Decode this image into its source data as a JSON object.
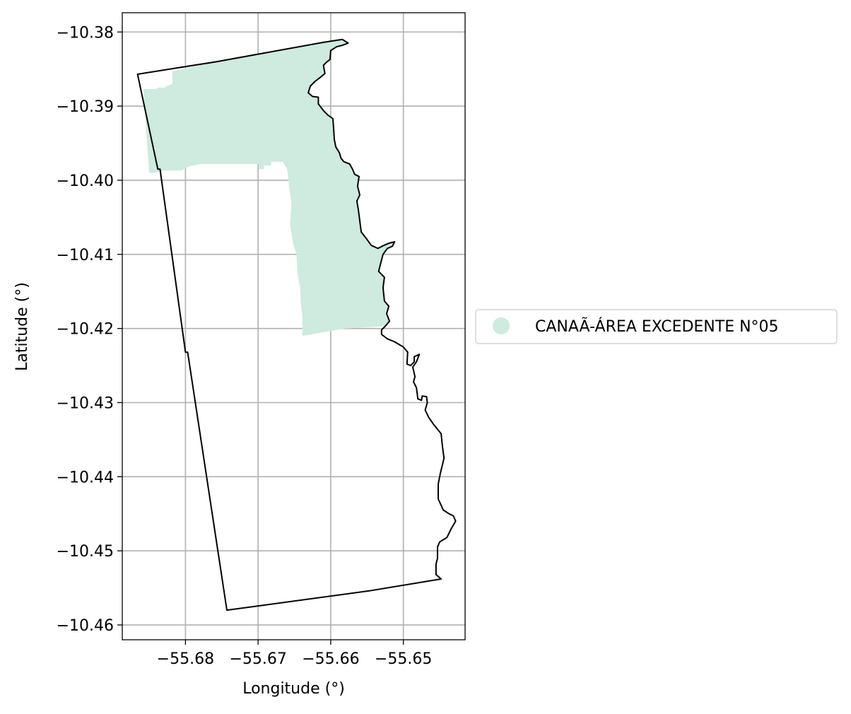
{
  "chart_data": {
    "type": "map",
    "xlabel": "Longitude (°)",
    "ylabel": "Latitude (°)",
    "xlim": [
      -55.6887,
      -55.6415
    ],
    "ylim": [
      -10.462,
      -10.3774
    ],
    "x_ticks": [
      -55.68,
      -55.67,
      -55.66,
      -55.65
    ],
    "x_tick_labels": [
      "−55.68",
      "−55.67",
      "−55.66",
      "−55.65"
    ],
    "y_ticks": [
      -10.38,
      -10.39,
      -10.4,
      -10.41,
      -10.42,
      -10.43,
      -10.44,
      -10.45,
      -10.46
    ],
    "y_tick_labels": [
      "−10.38",
      "−10.39",
      "−10.40",
      "−10.41",
      "−10.42",
      "−10.43",
      "−10.44",
      "−10.45",
      "−10.46"
    ],
    "grid": true,
    "legend": {
      "placement": "right",
      "entries": [
        {
          "label": "CANAÃ-ÁREA EXCEDENTE N°05",
          "color": "#cfeadf",
          "marker": "circle"
        }
      ]
    },
    "colors": {
      "fill": "#cfeadf",
      "boundary": "#000000",
      "grid": "#b0b0b0"
    },
    "filled_region": [
      [
        -55.6858,
        -10.3877
      ],
      [
        -55.6841,
        -10.3877
      ],
      [
        -55.6837,
        -10.3875
      ],
      [
        -55.6829,
        -10.3875
      ],
      [
        -55.6826,
        -10.3873
      ],
      [
        -55.6818,
        -10.387
      ],
      [
        -55.6818,
        -10.3853
      ],
      [
        -55.6757,
        -10.384
      ],
      [
        -55.661,
        -10.3814
      ],
      [
        -55.6584,
        -10.381
      ],
      [
        -55.6576,
        -10.3815
      ],
      [
        -55.6584,
        -10.3818
      ],
      [
        -55.6592,
        -10.382
      ],
      [
        -55.66,
        -10.3825
      ],
      [
        -55.6601,
        -10.3837
      ],
      [
        -55.6606,
        -10.3841
      ],
      [
        -55.661,
        -10.3845
      ],
      [
        -55.6608,
        -10.3856
      ],
      [
        -55.6614,
        -10.3861
      ],
      [
        -55.6622,
        -10.3867
      ],
      [
        -55.6628,
        -10.3873
      ],
      [
        -55.6631,
        -10.3882
      ],
      [
        -55.6625,
        -10.3887
      ],
      [
        -55.6617,
        -10.3888
      ],
      [
        -55.6617,
        -10.3897
      ],
      [
        -55.661,
        -10.3906
      ],
      [
        -55.6604,
        -10.3912
      ],
      [
        -55.6597,
        -10.3917
      ],
      [
        -55.6596,
        -10.393
      ],
      [
        -55.6595,
        -10.3945
      ],
      [
        -55.6593,
        -10.3955
      ],
      [
        -55.6588,
        -10.3963
      ],
      [
        -55.6586,
        -10.397
      ],
      [
        -55.6582,
        -10.3975
      ],
      [
        -55.6574,
        -10.3978
      ],
      [
        -55.657,
        -10.3985
      ],
      [
        -55.6567,
        -10.3992
      ],
      [
        -55.6561,
        -10.3995
      ],
      [
        -55.6563,
        -10.4008
      ],
      [
        -55.656,
        -10.402
      ],
      [
        -55.6564,
        -10.4028
      ],
      [
        -55.6562,
        -10.404
      ],
      [
        -55.6558,
        -10.407
      ],
      [
        -55.655,
        -10.408
      ],
      [
        -55.6544,
        -10.4088
      ],
      [
        -55.6535,
        -10.4092
      ],
      [
        -55.6527,
        -10.4088
      ],
      [
        -55.652,
        -10.4085
      ],
      [
        -55.6512,
        -10.4083
      ],
      [
        -55.6515,
        -10.4089
      ],
      [
        -55.6522,
        -10.4092
      ],
      [
        -55.6528,
        -10.41
      ],
      [
        -55.6532,
        -10.4115
      ],
      [
        -55.6534,
        -10.4123
      ],
      [
        -55.6526,
        -10.4131
      ],
      [
        -55.6528,
        -10.4145
      ],
      [
        -55.6526,
        -10.4163
      ],
      [
        -55.652,
        -10.417
      ],
      [
        -55.6523,
        -10.418
      ],
      [
        -55.6519,
        -10.419
      ],
      [
        -55.6525,
        -10.4197
      ],
      [
        -55.658,
        -10.42
      ],
      [
        -55.6639,
        -10.421
      ],
      [
        -55.6639,
        -10.4183
      ],
      [
        -55.6641,
        -10.4168
      ],
      [
        -55.6642,
        -10.4145
      ],
      [
        -55.6646,
        -10.4125
      ],
      [
        -55.6647,
        -10.41
      ],
      [
        -55.6652,
        -10.4085
      ],
      [
        -55.6656,
        -10.406
      ],
      [
        -55.6654,
        -10.403
      ],
      [
        -55.6656,
        -10.4018
      ],
      [
        -55.666,
        -10.3985
      ],
      [
        -55.6666,
        -10.3975
      ],
      [
        -55.6682,
        -10.3975
      ],
      [
        -55.6682,
        -10.398
      ],
      [
        -55.6692,
        -10.398
      ],
      [
        -55.6692,
        -10.3985
      ],
      [
        -55.6699,
        -10.3985
      ],
      [
        -55.6699,
        -10.3978
      ],
      [
        -55.6778,
        -10.3978
      ],
      [
        -55.6794,
        -10.3981
      ],
      [
        -55.6806,
        -10.3987
      ],
      [
        -55.6831,
        -10.3987
      ],
      [
        -55.6841,
        -10.399
      ],
      [
        -55.685,
        -10.399
      ]
    ],
    "boundary": [
      [
        -55.6866,
        -10.3857
      ],
      [
        -55.6757,
        -10.384
      ],
      [
        -55.661,
        -10.3814
      ],
      [
        -55.6584,
        -10.381
      ],
      [
        -55.6576,
        -10.3815
      ],
      [
        -55.6584,
        -10.3818
      ],
      [
        -55.6592,
        -10.382
      ],
      [
        -55.66,
        -10.3825
      ],
      [
        -55.6601,
        -10.3837
      ],
      [
        -55.6606,
        -10.3841
      ],
      [
        -55.661,
        -10.3845
      ],
      [
        -55.6608,
        -10.3856
      ],
      [
        -55.6614,
        -10.3861
      ],
      [
        -55.6622,
        -10.3867
      ],
      [
        -55.6628,
        -10.3873
      ],
      [
        -55.6631,
        -10.3882
      ],
      [
        -55.6625,
        -10.3887
      ],
      [
        -55.6617,
        -10.3888
      ],
      [
        -55.6617,
        -10.3897
      ],
      [
        -55.661,
        -10.3906
      ],
      [
        -55.6604,
        -10.3912
      ],
      [
        -55.6597,
        -10.3917
      ],
      [
        -55.6596,
        -10.393
      ],
      [
        -55.6595,
        -10.3945
      ],
      [
        -55.6593,
        -10.3955
      ],
      [
        -55.6588,
        -10.3963
      ],
      [
        -55.6586,
        -10.397
      ],
      [
        -55.6582,
        -10.3975
      ],
      [
        -55.6574,
        -10.3978
      ],
      [
        -55.657,
        -10.3985
      ],
      [
        -55.6567,
        -10.3992
      ],
      [
        -55.6561,
        -10.3995
      ],
      [
        -55.6563,
        -10.4008
      ],
      [
        -55.656,
        -10.402
      ],
      [
        -55.6564,
        -10.4028
      ],
      [
        -55.6562,
        -10.404
      ],
      [
        -55.6558,
        -10.407
      ],
      [
        -55.655,
        -10.408
      ],
      [
        -55.6544,
        -10.4088
      ],
      [
        -55.6535,
        -10.4092
      ],
      [
        -55.6527,
        -10.4088
      ],
      [
        -55.652,
        -10.4085
      ],
      [
        -55.6512,
        -10.4083
      ],
      [
        -55.6515,
        -10.4089
      ],
      [
        -55.6522,
        -10.4092
      ],
      [
        -55.6528,
        -10.41
      ],
      [
        -55.6532,
        -10.4115
      ],
      [
        -55.6534,
        -10.4123
      ],
      [
        -55.6526,
        -10.4131
      ],
      [
        -55.6528,
        -10.4145
      ],
      [
        -55.6526,
        -10.4163
      ],
      [
        -55.652,
        -10.417
      ],
      [
        -55.6523,
        -10.418
      ],
      [
        -55.6519,
        -10.419
      ],
      [
        -55.6525,
        -10.4197
      ],
      [
        -55.653,
        -10.4202
      ],
      [
        -55.653,
        -10.4208
      ],
      [
        -55.6522,
        -10.4214
      ],
      [
        -55.6512,
        -10.4218
      ],
      [
        -55.65,
        -10.4225
      ],
      [
        -55.6494,
        -10.4232
      ],
      [
        -55.6495,
        -10.4248
      ],
      [
        -55.649,
        -10.425
      ],
      [
        -55.6485,
        -10.4245
      ],
      [
        -55.6485,
        -10.4238
      ],
      [
        -55.6478,
        -10.4235
      ],
      [
        -55.6482,
        -10.4245
      ],
      [
        -55.6487,
        -10.4252
      ],
      [
        -55.6484,
        -10.4265
      ],
      [
        -55.6486,
        -10.4272
      ],
      [
        -55.6482,
        -10.428
      ],
      [
        -55.648,
        -10.4295
      ],
      [
        -55.6475,
        -10.4297
      ],
      [
        -55.6474,
        -10.4291
      ],
      [
        -55.6468,
        -10.4292
      ],
      [
        -55.6467,
        -10.43
      ],
      [
        -55.647,
        -10.431
      ],
      [
        -55.6465,
        -10.432
      ],
      [
        -55.6458,
        -10.433
      ],
      [
        -55.6448,
        -10.4342
      ],
      [
        -55.6446,
        -10.436
      ],
      [
        -55.6444,
        -10.4375
      ],
      [
        -55.6449,
        -10.4395
      ],
      [
        -55.6452,
        -10.441
      ],
      [
        -55.6452,
        -10.443
      ],
      [
        -55.6445,
        -10.4445
      ],
      [
        -55.6437,
        -10.445
      ],
      [
        -55.6431,
        -10.4453
      ],
      [
        -55.6428,
        -10.446
      ],
      [
        -55.6434,
        -10.447
      ],
      [
        -55.644,
        -10.4482
      ],
      [
        -55.645,
        -10.4488
      ],
      [
        -55.6453,
        -10.4495
      ],
      [
        -55.6453,
        -10.451
      ],
      [
        -55.6455,
        -10.4518
      ],
      [
        -55.6455,
        -10.4532
      ],
      [
        -55.6448,
        -10.4538
      ],
      [
        -55.6547,
        -10.4554
      ],
      [
        -55.6743,
        -10.458
      ],
      [
        -55.6797,
        -10.4232
      ],
      [
        -55.68,
        -10.4232
      ],
      [
        -55.6835,
        -10.3985
      ],
      [
        -55.6838,
        -10.3985
      ]
    ]
  }
}
